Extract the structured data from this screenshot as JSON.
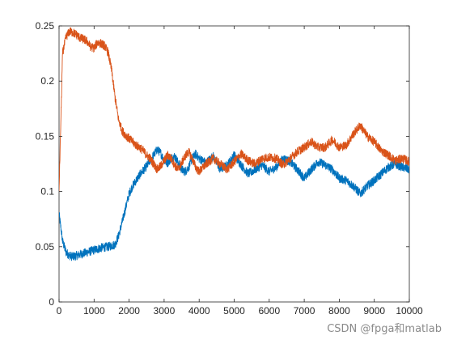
{
  "chart_data": {
    "type": "line",
    "title": "",
    "xlabel": "",
    "ylabel": "",
    "xlim": [
      0,
      10000
    ],
    "ylim": [
      0,
      0.25
    ],
    "xticks": [
      0,
      1000,
      2000,
      3000,
      4000,
      5000,
      6000,
      7000,
      8000,
      9000,
      10000
    ],
    "xtick_labels": [
      "0",
      "1000",
      "2000",
      "3000",
      "4000",
      "5000",
      "6000",
      "7000",
      "8000",
      "9000",
      "10000"
    ],
    "yticks": [
      0,
      0.05,
      0.1,
      0.15,
      0.2,
      0.25
    ],
    "ytick_labels": [
      "0",
      "0.05",
      "0.1",
      "0.15",
      "0.2",
      "0.25"
    ],
    "grid": false,
    "legend": "none",
    "noise_amplitude": 0.004,
    "series": [
      {
        "color": "#0072BD",
        "x": [
          0,
          100,
          200,
          300,
          400,
          500,
          600,
          800,
          1000,
          1200,
          1400,
          1600,
          1700,
          1800,
          1900,
          2000,
          2100,
          2200,
          2300,
          2400,
          2500,
          2600,
          2700,
          2800,
          2900,
          3000,
          3100,
          3200,
          3300,
          3400,
          3500,
          3600,
          3700,
          3800,
          3900,
          4000,
          4200,
          4400,
          4600,
          4800,
          5000,
          5200,
          5400,
          5600,
          5800,
          6000,
          6200,
          6400,
          6600,
          6800,
          7000,
          7200,
          7400,
          7600,
          7800,
          8000,
          8200,
          8400,
          8600,
          8800,
          9000,
          9200,
          9400,
          9600,
          9800,
          10000
        ],
        "y": [
          0.08,
          0.055,
          0.045,
          0.042,
          0.041,
          0.042,
          0.043,
          0.045,
          0.047,
          0.049,
          0.05,
          0.052,
          0.06,
          0.072,
          0.085,
          0.098,
          0.105,
          0.11,
          0.115,
          0.119,
          0.123,
          0.128,
          0.133,
          0.138,
          0.135,
          0.128,
          0.126,
          0.13,
          0.132,
          0.126,
          0.12,
          0.118,
          0.122,
          0.13,
          0.134,
          0.13,
          0.126,
          0.132,
          0.12,
          0.124,
          0.133,
          0.124,
          0.116,
          0.12,
          0.124,
          0.118,
          0.122,
          0.13,
          0.127,
          0.12,
          0.112,
          0.12,
          0.127,
          0.124,
          0.12,
          0.112,
          0.11,
          0.105,
          0.098,
          0.105,
          0.11,
          0.116,
          0.122,
          0.125,
          0.122,
          0.12
        ]
      },
      {
        "color": "#D95319",
        "x": [
          0,
          100,
          200,
          300,
          400,
          500,
          600,
          700,
          800,
          900,
          1000,
          1100,
          1200,
          1300,
          1400,
          1500,
          1600,
          1700,
          1800,
          1900,
          2000,
          2100,
          2200,
          2300,
          2400,
          2500,
          2600,
          2700,
          2800,
          2900,
          3000,
          3100,
          3200,
          3300,
          3400,
          3500,
          3600,
          3700,
          3800,
          3900,
          4000,
          4200,
          4400,
          4600,
          4800,
          5000,
          5200,
          5400,
          5600,
          5800,
          6000,
          6200,
          6400,
          6600,
          6800,
          7000,
          7200,
          7400,
          7600,
          7800,
          8000,
          8200,
          8400,
          8600,
          8800,
          9000,
          9200,
          9400,
          9600,
          9800,
          10000
        ],
        "y": [
          0.1,
          0.225,
          0.24,
          0.245,
          0.244,
          0.242,
          0.239,
          0.238,
          0.236,
          0.231,
          0.23,
          0.235,
          0.234,
          0.232,
          0.226,
          0.21,
          0.185,
          0.165,
          0.155,
          0.151,
          0.148,
          0.145,
          0.142,
          0.14,
          0.137,
          0.133,
          0.13,
          0.125,
          0.12,
          0.123,
          0.128,
          0.133,
          0.13,
          0.124,
          0.12,
          0.126,
          0.132,
          0.136,
          0.13,
          0.122,
          0.118,
          0.125,
          0.13,
          0.125,
          0.12,
          0.127,
          0.134,
          0.128,
          0.125,
          0.13,
          0.131,
          0.13,
          0.124,
          0.13,
          0.136,
          0.14,
          0.145,
          0.14,
          0.14,
          0.147,
          0.14,
          0.142,
          0.152,
          0.16,
          0.15,
          0.145,
          0.137,
          0.133,
          0.128,
          0.13,
          0.127
        ]
      }
    ]
  },
  "watermark": "CSDN @fpga和matlab"
}
